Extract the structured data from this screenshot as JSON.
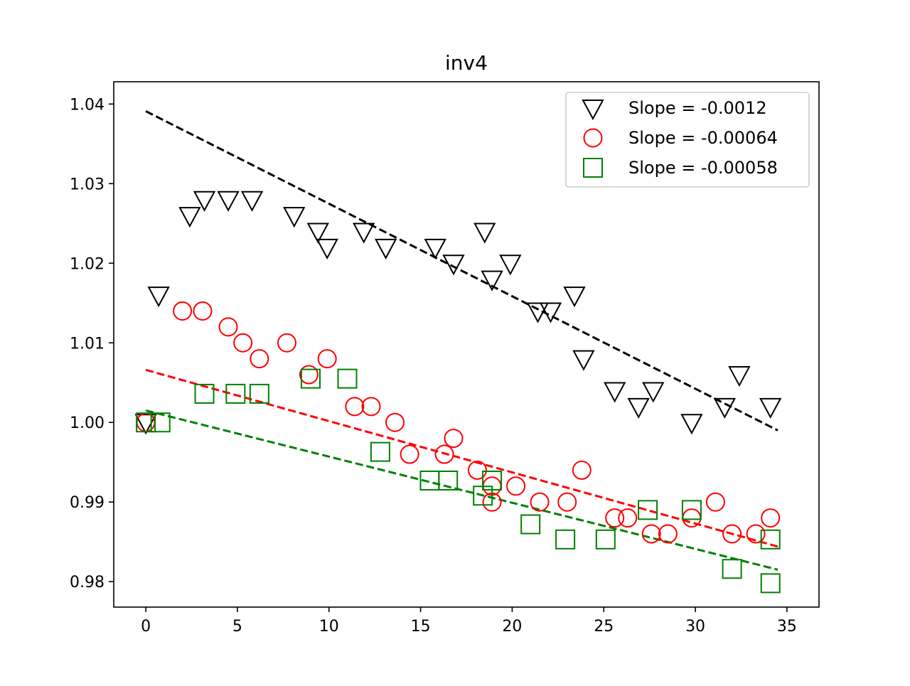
{
  "chart_data": {
    "type": "scatter",
    "title": "inv4",
    "xlabel": "",
    "ylabel": "",
    "xlim": [
      -1.75,
      36.75
    ],
    "ylim": [
      0.9768,
      1.0428
    ],
    "xticks": [
      0,
      5,
      10,
      15,
      20,
      25,
      30,
      35
    ],
    "yticks": [
      0.98,
      0.99,
      1.0,
      1.01,
      1.02,
      1.03,
      1.04
    ],
    "ytick_labels": [
      "0.98",
      "0.99",
      "1.00",
      "1.01",
      "1.02",
      "1.03",
      "1.04"
    ],
    "legend_position": "upper right",
    "series": [
      {
        "name": "Slope = -0.0012",
        "color": "#000000",
        "marker": "triangle-down",
        "fit_line": {
          "x": [
            0,
            34.5
          ],
          "y": [
            1.0391,
            0.999
          ]
        },
        "x": [
          0,
          0.7,
          2.4,
          3.2,
          4.5,
          5.8,
          8.1,
          9.4,
          9.9,
          11.9,
          13.1,
          15.8,
          16.8,
          18.5,
          18.9,
          19.9,
          21.4,
          22.1,
          23.4,
          23.9,
          25.6,
          26.9,
          27.7,
          29.8,
          31.6,
          32.4,
          34.1
        ],
        "y": [
          1.0,
          1.016,
          1.026,
          1.028,
          1.028,
          1.028,
          1.026,
          1.024,
          1.022,
          1.024,
          1.022,
          1.022,
          1.02,
          1.024,
          1.018,
          1.02,
          1.014,
          1.014,
          1.016,
          1.008,
          1.004,
          1.002,
          1.004,
          1.0,
          1.002,
          1.006,
          1.002
        ]
      },
      {
        "name": "Slope = -0.00064",
        "color": "#ff0000",
        "marker": "circle",
        "fit_line": {
          "x": [
            0,
            34.5
          ],
          "y": [
            1.0066,
            0.9844
          ]
        },
        "x": [
          0,
          2.0,
          3.1,
          4.5,
          5.3,
          6.2,
          7.7,
          8.9,
          9.9,
          11.4,
          12.3,
          13.6,
          14.4,
          16.3,
          16.8,
          18.1,
          18.9,
          18.9,
          20.2,
          21.5,
          23.0,
          23.8,
          25.6,
          26.3,
          27.6,
          28.5,
          29.8,
          31.1,
          32.0,
          33.3,
          34.1
        ],
        "y": [
          1.0,
          1.014,
          1.014,
          1.012,
          1.01,
          1.008,
          1.01,
          1.006,
          1.008,
          1.002,
          1.002,
          1.0,
          0.996,
          0.996,
          0.998,
          0.994,
          0.992,
          0.99,
          0.992,
          0.99,
          0.99,
          0.994,
          0.988,
          0.988,
          0.986,
          0.986,
          0.988,
          0.99,
          0.986,
          0.986,
          0.988
        ]
      },
      {
        "name": "Slope = -0.00058",
        "color": "#008000",
        "marker": "square",
        "fit_line": {
          "x": [
            0,
            34.5
          ],
          "y": [
            1.0015,
            0.9815
          ]
        },
        "x": [
          0,
          0.8,
          3.2,
          4.9,
          6.2,
          9.0,
          11.0,
          12.8,
          15.5,
          16.5,
          18.4,
          18.9,
          21.0,
          22.9,
          25.1,
          27.4,
          29.8,
          32.0,
          34.1,
          34.1
        ],
        "y": [
          1.0,
          1.0,
          1.0036,
          1.0036,
          1.0036,
          1.0055,
          1.0055,
          0.9963,
          0.9927,
          0.9927,
          0.9908,
          0.9927,
          0.9872,
          0.9853,
          0.9853,
          0.989,
          0.989,
          0.9816,
          0.9853,
          0.9798
        ]
      }
    ]
  }
}
